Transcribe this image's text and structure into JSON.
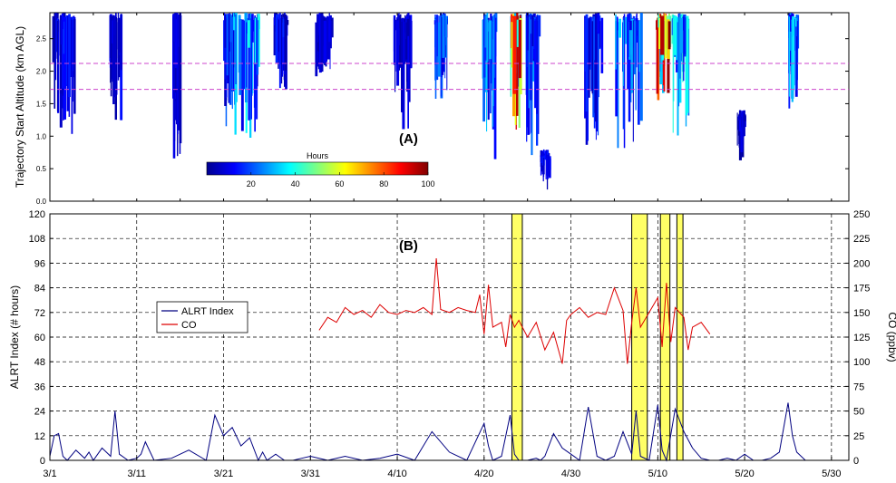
{
  "chart_data": [
    {
      "type": "heatmap",
      "panel_label": "(A)",
      "ylabel": "Trajectory Start Altitude  (km AGL)",
      "x_range": [
        "3/1",
        "6/1"
      ],
      "ylim": [
        0.0,
        2.9
      ],
      "yticks": [
        "0.0",
        "0.5",
        "1.0",
        "1.5",
        "2.0",
        "2.5"
      ],
      "reference_lines_km": [
        1.72,
        2.12
      ],
      "reference_line_color": "#cc44cc",
      "colorbar": {
        "title": "Hours",
        "ticks": [
          "20",
          "40",
          "60",
          "80",
          "100"
        ],
        "range": [
          0,
          100
        ]
      },
      "activity_clusters": [
        {
          "day": 1.5,
          "bottom_km": 0.7,
          "top_km": 2.9,
          "intensity": 15,
          "width_days": 2.5
        },
        {
          "day": 7.5,
          "bottom_km": 1.2,
          "top_km": 2.9,
          "intensity": 12,
          "width_days": 1.5
        },
        {
          "day": 14.5,
          "bottom_km": 0.5,
          "top_km": 2.9,
          "intensity": 10,
          "width_days": 0.8
        },
        {
          "day": 20.5,
          "bottom_km": 1.1,
          "top_km": 2.9,
          "intensity": 20,
          "width_days": 1.2
        },
        {
          "day": 22.5,
          "bottom_km": 0.9,
          "top_km": 2.9,
          "intensity": 35,
          "width_days": 3.0
        },
        {
          "day": 26.5,
          "bottom_km": 1.6,
          "top_km": 2.9,
          "intensity": 15,
          "width_days": 1.5
        },
        {
          "day": 31.5,
          "bottom_km": 1.8,
          "top_km": 2.9,
          "intensity": 10,
          "width_days": 2.0
        },
        {
          "day": 40.5,
          "bottom_km": 1.1,
          "top_km": 2.9,
          "intensity": 12,
          "width_days": 2.0
        },
        {
          "day": 45.0,
          "bottom_km": 1.5,
          "top_km": 2.9,
          "intensity": 25,
          "width_days": 1.5
        },
        {
          "day": 50.5,
          "bottom_km": 0.5,
          "top_km": 2.9,
          "intensity": 30,
          "width_days": 1.5
        },
        {
          "day": 53.5,
          "bottom_km": 0.8,
          "top_km": 2.9,
          "intensity": 85,
          "width_days": 1.2
        },
        {
          "day": 55.5,
          "bottom_km": 0.3,
          "top_km": 2.9,
          "intensity": 25,
          "width_days": 1.5
        },
        {
          "day": 57.0,
          "bottom_km": 0.1,
          "top_km": 0.8,
          "intensity": 15,
          "width_days": 1.2
        },
        {
          "day": 62.5,
          "bottom_km": 0.6,
          "top_km": 2.9,
          "intensity": 18,
          "width_days": 2.0
        },
        {
          "day": 66.5,
          "bottom_km": 0.6,
          "top_km": 2.9,
          "intensity": 30,
          "width_days": 3.0
        },
        {
          "day": 70.5,
          "bottom_km": 1.4,
          "top_km": 2.9,
          "intensity": 95,
          "width_days": 1.5
        },
        {
          "day": 72.5,
          "bottom_km": 0.9,
          "top_km": 2.9,
          "intensity": 40,
          "width_days": 2.0
        },
        {
          "day": 79.5,
          "bottom_km": 0.5,
          "top_km": 1.4,
          "intensity": 10,
          "width_days": 0.8
        },
        {
          "day": 85.5,
          "bottom_km": 1.3,
          "top_km": 2.9,
          "intensity": 35,
          "width_days": 1.0
        }
      ]
    },
    {
      "type": "line",
      "panel_label": "(B)",
      "ylabel": "ALRT Index  (# hours)",
      "y2label": "CO  (ppbv)",
      "ylim": [
        0,
        120
      ],
      "y2lim": [
        0,
        250
      ],
      "yticks": [
        "0",
        "12",
        "24",
        "36",
        "48",
        "60",
        "72",
        "84",
        "96",
        "108",
        "120"
      ],
      "y2ticks": [
        "0",
        "25",
        "50",
        "75",
        "100",
        "125",
        "150",
        "175",
        "200",
        "225",
        "250"
      ],
      "xticks": [
        "3/1",
        "3/11",
        "3/21",
        "3/31",
        "4/10",
        "4/20",
        "4/30",
        "5/10",
        "5/20",
        "5/30"
      ],
      "grid": true,
      "legend_position": "left-middle",
      "series": [
        {
          "name": "ALRT Index",
          "color": "#000080",
          "axis": "left",
          "x_days": [
            0,
            0.5,
            1,
            1.5,
            2,
            3,
            4,
            4.5,
            5,
            6,
            7,
            7.5,
            8,
            9,
            10,
            10.5,
            11,
            12,
            14,
            16,
            18,
            19,
            20,
            21,
            22,
            23,
            24,
            24.5,
            25,
            26,
            27,
            28,
            29,
            30,
            32,
            34,
            36,
            38,
            40,
            42,
            44,
            46,
            48,
            50,
            50.5,
            51,
            52,
            53,
            53.5,
            54,
            55,
            56,
            56.5,
            57,
            58,
            59,
            60,
            61,
            62,
            63,
            64,
            65,
            66,
            67,
            67.5,
            68,
            69,
            70,
            70.5,
            71,
            72,
            73,
            74,
            75,
            76,
            77,
            78,
            79,
            80,
            81,
            82,
            83,
            84,
            85,
            85.5,
            86,
            87,
            88,
            90,
            92
          ],
          "values": [
            2,
            12,
            13,
            2,
            0,
            5,
            1,
            4,
            0,
            6,
            2,
            24,
            3,
            0,
            1,
            3,
            9,
            0,
            1,
            5,
            0,
            22,
            12,
            16,
            7,
            11,
            0,
            4,
            0,
            3,
            0,
            0,
            1,
            2,
            0,
            2,
            0,
            1,
            3,
            0,
            14,
            4,
            0,
            18,
            7,
            0,
            2,
            22,
            3,
            0,
            0,
            1,
            0,
            2,
            13,
            6,
            3,
            0,
            26,
            2,
            0,
            2,
            14,
            3,
            24,
            2,
            0,
            27,
            5,
            0,
            25,
            14,
            6,
            1,
            0,
            0,
            1,
            0,
            3,
            0,
            0,
            1,
            4,
            28,
            12,
            4,
            0,
            0,
            0,
            0
          ]
        },
        {
          "name": "CO",
          "color": "#dd0000",
          "axis": "right",
          "x_days": [
            31,
            32,
            33,
            34,
            35,
            36,
            37,
            38,
            39,
            40,
            41,
            42,
            43,
            44,
            44.5,
            45,
            46,
            47,
            48,
            49,
            49.5,
            50,
            50.5,
            51,
            52,
            52.5,
            53,
            53.5,
            54,
            55,
            56,
            57,
            58,
            59,
            59.5,
            60,
            61,
            62,
            63,
            64,
            65,
            66,
            66.5,
            67,
            67.5,
            68,
            69,
            70,
            70.5,
            71,
            71.5,
            72,
            73,
            73.5,
            74,
            75,
            76
          ],
          "values": [
            132,
            145,
            140,
            155,
            148,
            152,
            145,
            158,
            150,
            148,
            152,
            150,
            155,
            148,
            205,
            153,
            150,
            155,
            152,
            150,
            168,
            128,
            178,
            135,
            140,
            115,
            148,
            135,
            142,
            125,
            140,
            112,
            130,
            98,
            142,
            148,
            155,
            145,
            150,
            148,
            175,
            152,
            98,
            140,
            175,
            135,
            150,
            165,
            115,
            180,
            120,
            155,
            145,
            112,
            135,
            140,
            128
          ]
        }
      ],
      "highlight_boxes": [
        {
          "start_day": 53.2,
          "end_day": 54.4
        },
        {
          "start_day": 67.0,
          "end_day": 68.8
        },
        {
          "start_day": 70.3,
          "end_day": 71.4
        },
        {
          "start_day": 72.2,
          "end_day": 72.9
        }
      ],
      "highlight_color": "#ffff66"
    }
  ]
}
